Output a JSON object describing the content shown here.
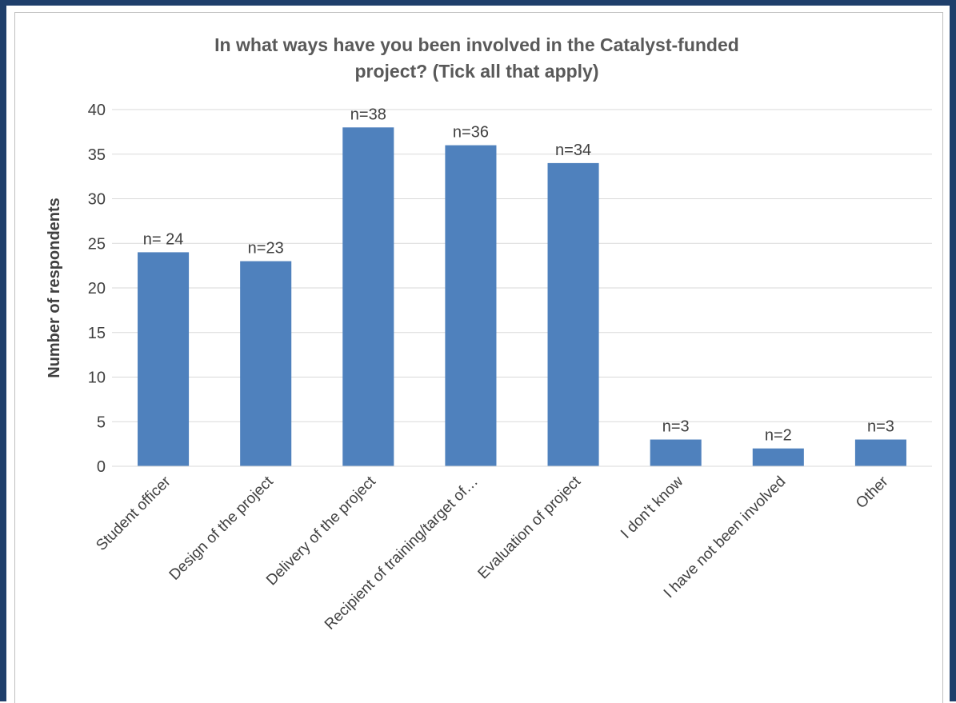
{
  "chart_data": {
    "type": "bar",
    "title_lines": [
      "In what ways have you been involved in the Catalyst-funded",
      "project? (Tick all that apply)"
    ],
    "ylabel": "Number of respondents",
    "xlabel": "",
    "ylim": [
      0,
      40
    ],
    "yticks": [
      0,
      5,
      10,
      15,
      20,
      25,
      30,
      35,
      40
    ],
    "grid": true,
    "legend": "none",
    "bar_color": "#4f81bd",
    "categories": [
      "Student officer",
      "Design of the project",
      "Delivery of the project",
      "Recipient of training/target of…",
      "Evaluation of project",
      "I don't know",
      "I have not been involved",
      "Other"
    ],
    "values": [
      24,
      23,
      38,
      36,
      34,
      3,
      2,
      3
    ],
    "data_labels": [
      "n= 24",
      "n=23",
      "n=38",
      "n=36",
      "n=34",
      "n=3",
      "n=2",
      "n=3"
    ]
  }
}
